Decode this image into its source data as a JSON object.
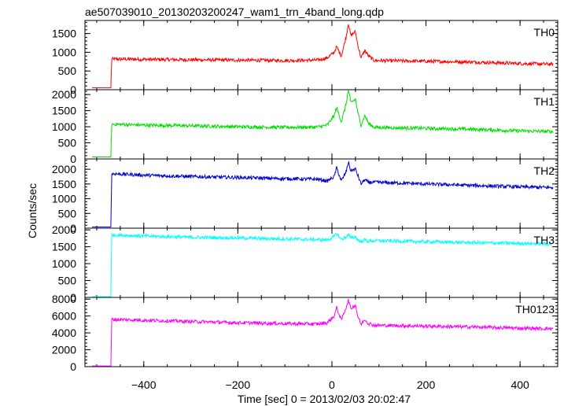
{
  "chart_data": {
    "type": "line",
    "title": "ae507039010_20130203200247_wam1_trn_4band_long.qdp",
    "xlabel": "Time [sec] 0 = 2013/02/03 20:02:47",
    "ylabel": "Counts/sec",
    "xlim": [
      -525,
      480
    ],
    "x_ticks": [
      -400,
      -200,
      0,
      200,
      400
    ],
    "x_tick_labels": [
      "−400",
      "−200",
      "0",
      "200",
      "400"
    ],
    "series": [
      {
        "name": "TH0",
        "color": "#ff0000",
        "ylim": [
          0,
          1850
        ],
        "y_ticks": [
          0,
          500,
          1000,
          1500
        ],
        "y_tick_labels": [
          "0",
          "500",
          "1000",
          "1500"
        ],
        "x": [
          -510,
          -470,
          -468,
          -400,
          -300,
          -200,
          -100,
          -30,
          -10,
          5,
          10,
          20,
          30,
          35,
          40,
          50,
          55,
          62,
          70,
          78,
          90,
          200,
          300,
          400,
          470
        ],
        "y": [
          50,
          50,
          820,
          810,
          800,
          790,
          780,
          790,
          850,
          1000,
          1150,
          900,
          1400,
          1780,
          1450,
          1550,
          1200,
          850,
          1050,
          900,
          780,
          760,
          740,
          700,
          680
        ]
      },
      {
        "name": "TH1",
        "color": "#00e000",
        "ylim": [
          0,
          2150
        ],
        "y_ticks": [
          0,
          500,
          1000,
          1500,
          2000
        ],
        "y_tick_labels": [
          "0",
          "500",
          "1000",
          "1500",
          "2000"
        ],
        "x": [
          -510,
          -470,
          -468,
          -400,
          -300,
          -200,
          -100,
          -30,
          -10,
          5,
          10,
          20,
          30,
          35,
          40,
          50,
          55,
          62,
          70,
          78,
          90,
          200,
          300,
          400,
          470
        ],
        "y": [
          60,
          60,
          1080,
          1050,
          1030,
          1000,
          980,
          990,
          1050,
          1350,
          1600,
          1150,
          1700,
          2150,
          1750,
          1850,
          1450,
          1050,
          1350,
          1100,
          980,
          950,
          920,
          870,
          850
        ]
      },
      {
        "name": "TH2",
        "color": "#0000cc",
        "ylim": [
          0,
          2350
        ],
        "y_ticks": [
          0,
          500,
          1000,
          1500,
          2000
        ],
        "y_tick_labels": [
          "0",
          "500",
          "1000",
          "1500",
          "2000"
        ],
        "x": [
          -510,
          -470,
          -468,
          -400,
          -300,
          -200,
          -100,
          -30,
          -10,
          5,
          10,
          20,
          30,
          35,
          40,
          50,
          55,
          62,
          70,
          78,
          90,
          200,
          300,
          400,
          470
        ],
        "y": [
          40,
          40,
          1850,
          1800,
          1750,
          1720,
          1680,
          1660,
          1600,
          1750,
          2050,
          1600,
          1900,
          2250,
          1950,
          2000,
          1800,
          1500,
          1650,
          1550,
          1560,
          1500,
          1450,
          1400,
          1380
        ]
      },
      {
        "name": "TH3",
        "color": "#00ffff",
        "ylim": [
          0,
          2050
        ],
        "y_ticks": [
          0,
          500,
          1000,
          1500,
          2000
        ],
        "y_tick_labels": [
          "0",
          "500",
          "1000",
          "1500",
          "2000"
        ],
        "x": [
          -510,
          -470,
          -468,
          -400,
          -300,
          -200,
          -100,
          -30,
          -10,
          5,
          10,
          20,
          30,
          35,
          40,
          50,
          55,
          62,
          70,
          78,
          90,
          200,
          300,
          400,
          470
        ],
        "y": [
          20,
          20,
          1850,
          1820,
          1780,
          1760,
          1730,
          1710,
          1700,
          1800,
          1900,
          1720,
          1780,
          1870,
          1750,
          1800,
          1700,
          1650,
          1700,
          1660,
          1680,
          1650,
          1620,
          1600,
          1580
        ]
      },
      {
        "name": "TH0123",
        "color": "#ff00ff",
        "ylim": [
          0,
          8200
        ],
        "y_ticks": [
          0,
          2000,
          4000,
          6000,
          8000
        ],
        "y_tick_labels": [
          "0",
          "2000",
          "4000",
          "6000",
          "8000"
        ],
        "x": [
          -510,
          -470,
          -468,
          -400,
          -300,
          -200,
          -100,
          -30,
          -10,
          5,
          10,
          20,
          30,
          35,
          40,
          50,
          55,
          62,
          70,
          78,
          90,
          200,
          300,
          400,
          470
        ],
        "y": [
          80,
          80,
          5600,
          5500,
          5350,
          5200,
          5100,
          5050,
          5200,
          6000,
          7000,
          5500,
          7000,
          7900,
          6900,
          7300,
          6000,
          5000,
          5600,
          5100,
          4900,
          4800,
          4700,
          4550,
          4500
        ]
      }
    ]
  }
}
